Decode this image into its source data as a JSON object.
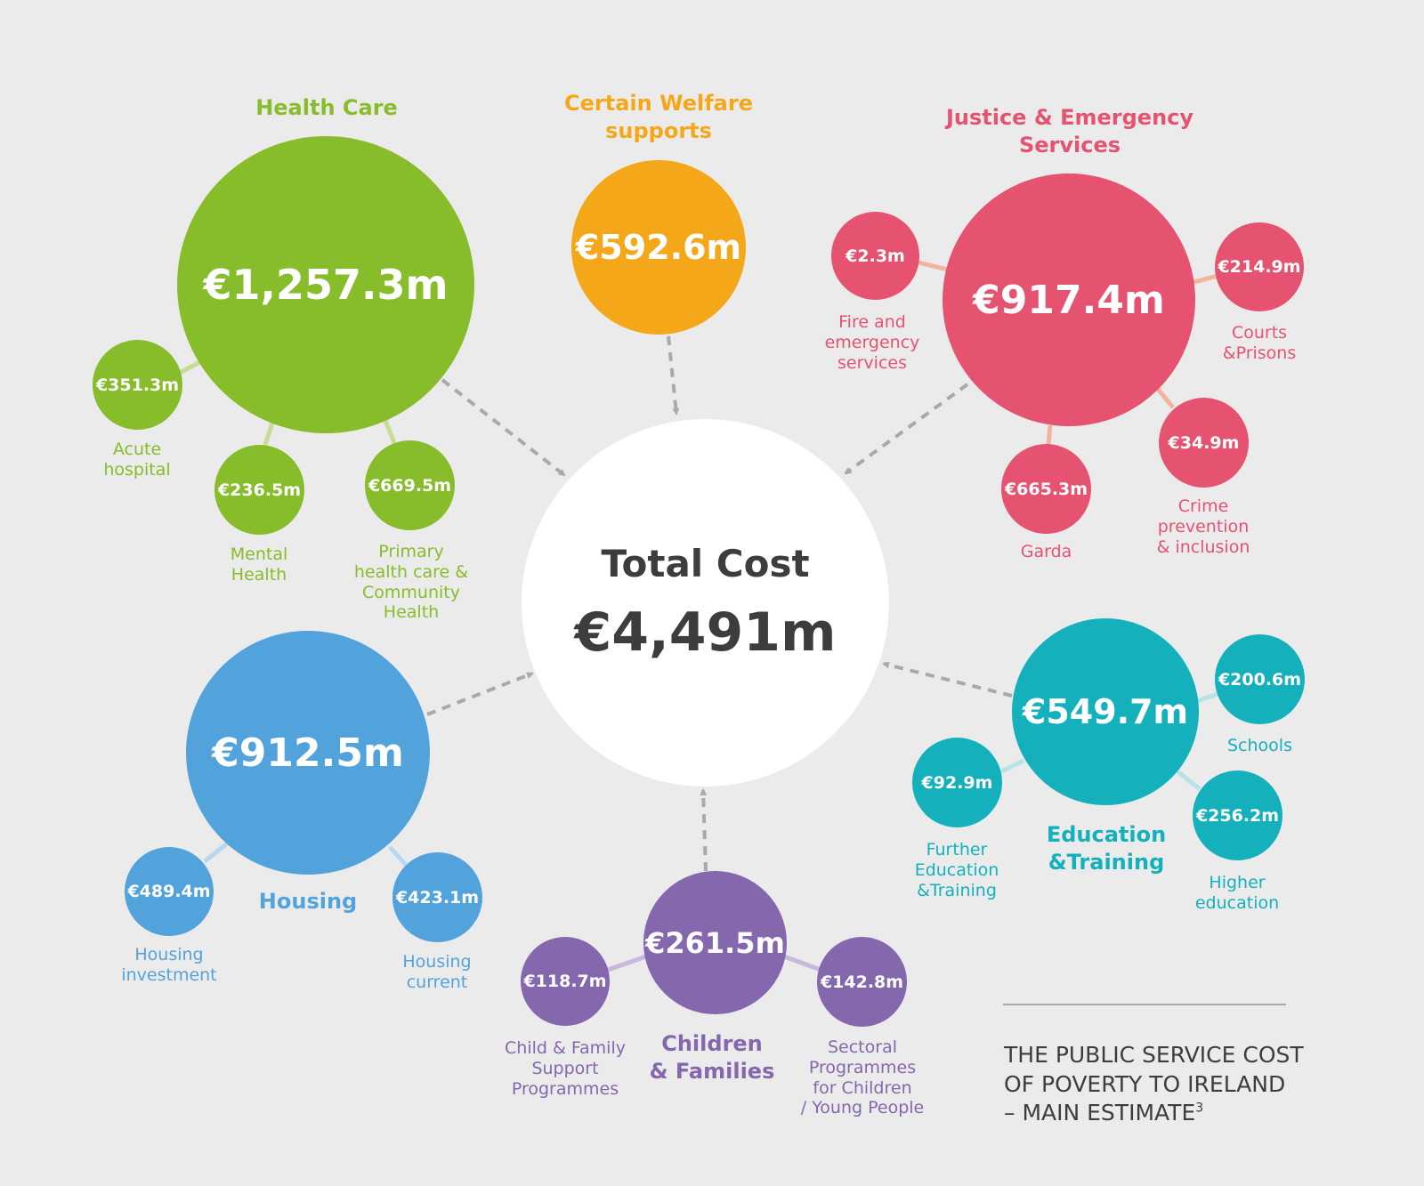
{
  "title_lines": [
    "THE PUBLIC SERVICE COST",
    "OF POVERTY TO IRELAND",
    "– MAIN ESTIMATE"
  ],
  "title_footnote": "3",
  "total": {
    "label": "Total Cost",
    "value": "€4,491m"
  },
  "health": {
    "title": "Health Care",
    "value": "€1,257.3m",
    "acute": {
      "value": "€351.3m",
      "label_lines": [
        "Acute",
        "hospital"
      ]
    },
    "mental": {
      "value": "€236.5m",
      "label_lines": [
        "Mental",
        "Health"
      ]
    },
    "primary": {
      "value": "€669.5m",
      "label_lines": [
        "Primary",
        "health care &",
        "Community",
        "Health"
      ]
    }
  },
  "welfare": {
    "title_lines": [
      "Certain Welfare",
      "supports"
    ],
    "value": "€592.6m"
  },
  "justice": {
    "title_lines": [
      "Justice & Emergency",
      "Services"
    ],
    "value": "€917.4m",
    "fire": {
      "value": "€2.3m",
      "label_lines": [
        "Fire and",
        "emergency",
        "services"
      ]
    },
    "courts": {
      "value": "€214.9m",
      "label_lines": [
        "Courts",
        "&Prisons"
      ]
    },
    "crime": {
      "value": "€34.9m",
      "label_lines": [
        "Crime",
        "prevention",
        "& inclusion"
      ]
    },
    "garda": {
      "value": "€665.3m",
      "label_lines": [
        "Garda"
      ]
    }
  },
  "housing": {
    "title": "Housing",
    "value": "€912.5m",
    "investment": {
      "value": "€489.4m",
      "label_lines": [
        "Housing",
        "investment"
      ]
    },
    "current": {
      "value": "€423.1m",
      "label_lines": [
        "Housing",
        "current"
      ]
    }
  },
  "children": {
    "title_lines": [
      "Children",
      "& Families"
    ],
    "value": "€261.5m",
    "support": {
      "value": "€118.7m",
      "label_lines": [
        "Child & Family",
        "Support",
        "Programmes"
      ]
    },
    "sectoral": {
      "value": "€142.8m",
      "label_lines": [
        "Sectoral",
        "Programmes",
        "for Children",
        "/ Young People"
      ]
    }
  },
  "education": {
    "title_lines": [
      "Education",
      "&Training"
    ],
    "value": "€549.7m",
    "schools": {
      "value": "€200.6m",
      "label_lines": [
        "Schools"
      ]
    },
    "further": {
      "value": "€92.9m",
      "label_lines": [
        "Further",
        "Education",
        "&Training"
      ]
    },
    "higher": {
      "value": "€256.2m",
      "label_lines": [
        "Higher",
        "education"
      ]
    }
  },
  "colors": {
    "health": "#87bc2a",
    "welfare": "#f5a71a",
    "justice": "#e65371",
    "housing": "#52a3dc",
    "children": "#8467ad",
    "education": "#14b1bd",
    "background": "#ebebeb",
    "arrow": "#a9a9a9",
    "text_dark": "#3d3d3d"
  }
}
